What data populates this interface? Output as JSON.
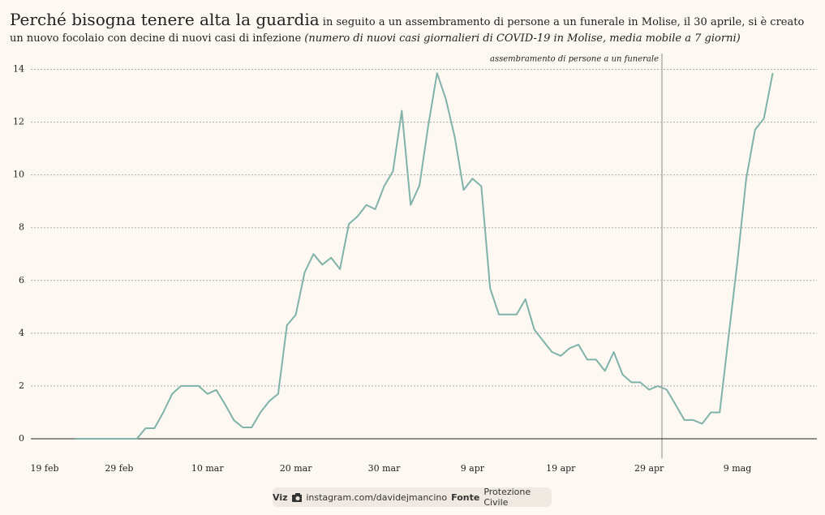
{
  "chart_data": {
    "type": "line",
    "title": "Perché bisogna tenere alta la guardia",
    "subtitle": "in seguito a un assembramento di persone a un funerale in Molise, il 30 aprile, si è creato un nuovo focolaio con decine di nuovi casi di infezione",
    "note": "(numero di nuovi casi giornalieri di COVID-19 in Molise, media mobile a 7 giorni)",
    "annotation": "assembramento di persone a un funerale",
    "color": "#7fb3aa",
    "grid": true,
    "ylim": [
      0,
      14.6
    ],
    "yticks": [
      0,
      2,
      4,
      6,
      8,
      10,
      12,
      14
    ],
    "categories": [
      "19 feb",
      null,
      null,
      null,
      null,
      null,
      null,
      null,
      null,
      null,
      "29 feb",
      null,
      null,
      null,
      null,
      null,
      null,
      null,
      null,
      null,
      "10 mar",
      null,
      null,
      null,
      null,
      null,
      null,
      null,
      null,
      null,
      "20 mar",
      null,
      null,
      null,
      null,
      null,
      null,
      null,
      null,
      null,
      "30 mar",
      null,
      null,
      null,
      null,
      null,
      null,
      null,
      null,
      null,
      "9 apr",
      null,
      null,
      null,
      null,
      null,
      null,
      null,
      null,
      null,
      "19 apr",
      null,
      null,
      null,
      null,
      null,
      null,
      null,
      null,
      null,
      "29 apr",
      null,
      null,
      null,
      null,
      null,
      null,
      null,
      null,
      null,
      "9 mag",
      null,
      null,
      null,
      null,
      null,
      null,
      null,
      null,
      null
    ],
    "values": [
      null,
      null,
      null,
      null,
      null,
      0,
      0,
      0,
      0,
      0,
      0,
      0,
      0,
      0.4,
      0.4,
      1.0,
      1.7,
      2.0,
      2.0,
      2.0,
      1.7,
      1.85,
      1.3,
      0.7,
      0.43,
      0.43,
      1.0,
      1.43,
      1.7,
      4.3,
      4.7,
      6.3,
      7.0,
      6.6,
      6.86,
      6.43,
      8.14,
      8.43,
      8.86,
      8.7,
      9.57,
      10.14,
      12.43,
      8.86,
      9.6,
      11.86,
      13.86,
      12.86,
      11.43,
      9.43,
      9.86,
      9.57,
      5.7,
      4.71,
      4.71,
      4.71,
      5.29,
      4.14,
      3.71,
      3.29,
      3.14,
      3.43,
      3.57,
      3.0,
      3.0,
      2.57,
      3.29,
      2.43,
      2.14,
      2.14,
      1.86,
      2.0,
      1.86,
      1.29,
      0.71,
      0.71,
      0.57,
      1.0,
      1.0,
      3.86,
      6.71,
      9.86,
      11.71,
      12.14,
      13.86,
      null,
      null,
      null,
      null,
      null
    ]
  },
  "footer": {
    "viz_label": "Viz",
    "viz": "instagram.com/davidejmancino",
    "source_label": "Fonte",
    "source": "Protezione Civile"
  }
}
